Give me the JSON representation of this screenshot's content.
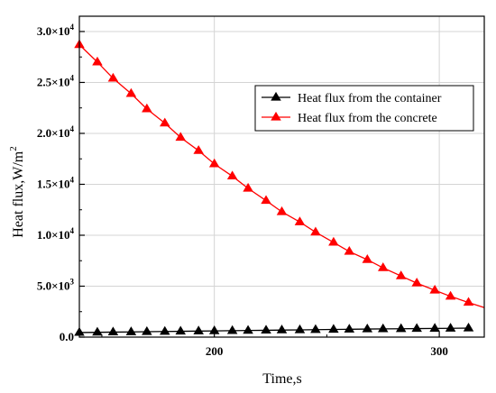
{
  "chart_data": {
    "type": "line",
    "title": "",
    "xlabel": "Time,s",
    "ylabel": "Heat flux,W/m",
    "ylabel_superscript": "2",
    "xlim": [
      140,
      320
    ],
    "ylim": [
      0,
      31500
    ],
    "grid": true,
    "legend_position": "top-right",
    "x_ticks": [
      {
        "value": 200,
        "label": "200"
      },
      {
        "value": 300,
        "label": "300"
      }
    ],
    "y_ticks": [
      {
        "value": 0,
        "mantissa": "0.0",
        "exponent": ""
      },
      {
        "value": 5000,
        "mantissa": "5.0×10",
        "exponent": "3"
      },
      {
        "value": 10000,
        "mantissa": "1.0×10",
        "exponent": "4"
      },
      {
        "value": 15000,
        "mantissa": "1.5×10",
        "exponent": "4"
      },
      {
        "value": 20000,
        "mantissa": "2.0×10",
        "exponent": "4"
      },
      {
        "value": 25000,
        "mantissa": "2.5×10",
        "exponent": "4"
      },
      {
        "value": 30000,
        "mantissa": "3.0×10",
        "exponent": "4"
      }
    ],
    "series": [
      {
        "name": "Heat flux from the container",
        "color": "#000000",
        "marker": "triangle",
        "x": [
          140,
          148,
          155,
          163,
          170,
          178,
          185,
          193,
          200,
          208,
          215,
          223,
          230,
          238,
          245,
          253,
          260,
          268,
          275,
          283,
          290,
          298,
          305,
          313
        ],
        "y": [
          450,
          470,
          490,
          510,
          530,
          550,
          570,
          590,
          610,
          630,
          650,
          670,
          690,
          710,
          730,
          750,
          770,
          790,
          805,
          820,
          835,
          850,
          865,
          880
        ]
      },
      {
        "name": "Heat flux from the concrete",
        "color": "#ff0000",
        "marker": "triangle",
        "x": [
          140,
          148,
          155,
          163,
          170,
          178,
          185,
          193,
          200,
          208,
          215,
          223,
          230,
          238,
          245,
          253,
          260,
          268,
          275,
          283,
          290,
          298,
          305,
          313,
          320
        ],
        "y": [
          28700,
          27000,
          25400,
          23900,
          22400,
          21000,
          19600,
          18300,
          17000,
          15800,
          14600,
          13400,
          12300,
          11300,
          10300,
          9300,
          8400,
          7600,
          6800,
          6000,
          5300,
          4600,
          4000,
          3400,
          2900
        ]
      }
    ]
  }
}
